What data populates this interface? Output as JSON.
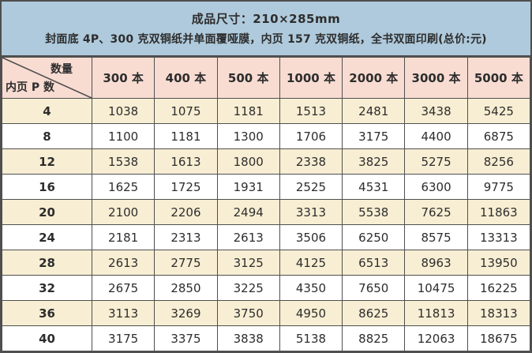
{
  "header": {
    "line1": "成品尺寸：210×285mm",
    "line2": "封面底 4P、300 克双铜纸并单面覆哑膜，内页 157 克双铜纸，全书双面印刷(总价:元)"
  },
  "table": {
    "corner": {
      "top_right": "数量",
      "bottom_left": "内页 P 数"
    },
    "columns": [
      "300 本",
      "400 本",
      "500 本",
      "1000 本",
      "2000 本",
      "3000 本",
      "5000 本"
    ],
    "rows": [
      {
        "pages": "4",
        "prices": [
          1038,
          1075,
          1181,
          1513,
          2481,
          3438,
          5425
        ]
      },
      {
        "pages": "8",
        "prices": [
          1100,
          1181,
          1300,
          1706,
          3175,
          4400,
          6875
        ]
      },
      {
        "pages": "12",
        "prices": [
          1538,
          1613,
          1800,
          2338,
          3825,
          5275,
          8256
        ]
      },
      {
        "pages": "16",
        "prices": [
          1625,
          1725,
          1931,
          2525,
          4531,
          6300,
          9775
        ]
      },
      {
        "pages": "20",
        "prices": [
          2100,
          2206,
          2494,
          3313,
          5538,
          7625,
          11863
        ]
      },
      {
        "pages": "24",
        "prices": [
          2181,
          2313,
          2613,
          3506,
          6250,
          8575,
          13313
        ]
      },
      {
        "pages": "28",
        "prices": [
          2613,
          2775,
          3125,
          4125,
          6513,
          8963,
          13950
        ]
      },
      {
        "pages": "32",
        "prices": [
          2675,
          2850,
          3225,
          4350,
          7650,
          10475,
          16225
        ]
      },
      {
        "pages": "36",
        "prices": [
          3113,
          3269,
          3750,
          4950,
          8625,
          11813,
          18313
        ]
      },
      {
        "pages": "40",
        "prices": [
          3175,
          3375,
          3838,
          5138,
          8825,
          12063,
          18675
        ]
      }
    ]
  },
  "colors": {
    "header_bg": "#afcadc",
    "column_header_bg": "#f8dcd2",
    "row_alt_bg": "#f8eed3",
    "row_bg": "#ffffff",
    "border": "#4f4f4f",
    "text": "#2d2d2d"
  },
  "chart_data": {
    "type": "table",
    "title": "成品尺寸：210×285mm",
    "subtitle": "封面底 4P、300 克双铜纸并单面覆哑膜，内页 157 克双铜纸，全书双面印刷(总价:元)",
    "row_axis_label": "内页 P 数",
    "column_axis_label": "数量",
    "columns": [
      "300 本",
      "400 本",
      "500 本",
      "1000 本",
      "2000 本",
      "3000 本",
      "5000 本"
    ],
    "row_categories": [
      4,
      8,
      12,
      16,
      20,
      24,
      28,
      32,
      36,
      40
    ],
    "series": [
      {
        "name": "300 本",
        "values": [
          1038,
          1100,
          1538,
          1625,
          2100,
          2181,
          2613,
          2675,
          3113,
          3175
        ]
      },
      {
        "name": "400 本",
        "values": [
          1075,
          1181,
          1613,
          1725,
          2206,
          2313,
          2775,
          2850,
          3269,
          3375
        ]
      },
      {
        "name": "500 本",
        "values": [
          1181,
          1300,
          1800,
          1931,
          2494,
          2613,
          3125,
          3225,
          3750,
          3838
        ]
      },
      {
        "name": "1000 本",
        "values": [
          1513,
          1706,
          2338,
          2525,
          3313,
          3506,
          4125,
          4350,
          4950,
          5138
        ]
      },
      {
        "name": "2000 本",
        "values": [
          2481,
          3175,
          3825,
          4531,
          5538,
          6250,
          6513,
          7650,
          8625,
          8825
        ]
      },
      {
        "name": "3000 本",
        "values": [
          3438,
          4400,
          5275,
          6300,
          7625,
          8575,
          8963,
          10475,
          11813,
          12063
        ]
      },
      {
        "name": "5000 本",
        "values": [
          5425,
          6875,
          8256,
          9775,
          11863,
          13313,
          13950,
          16225,
          18313,
          18675
        ]
      }
    ]
  }
}
